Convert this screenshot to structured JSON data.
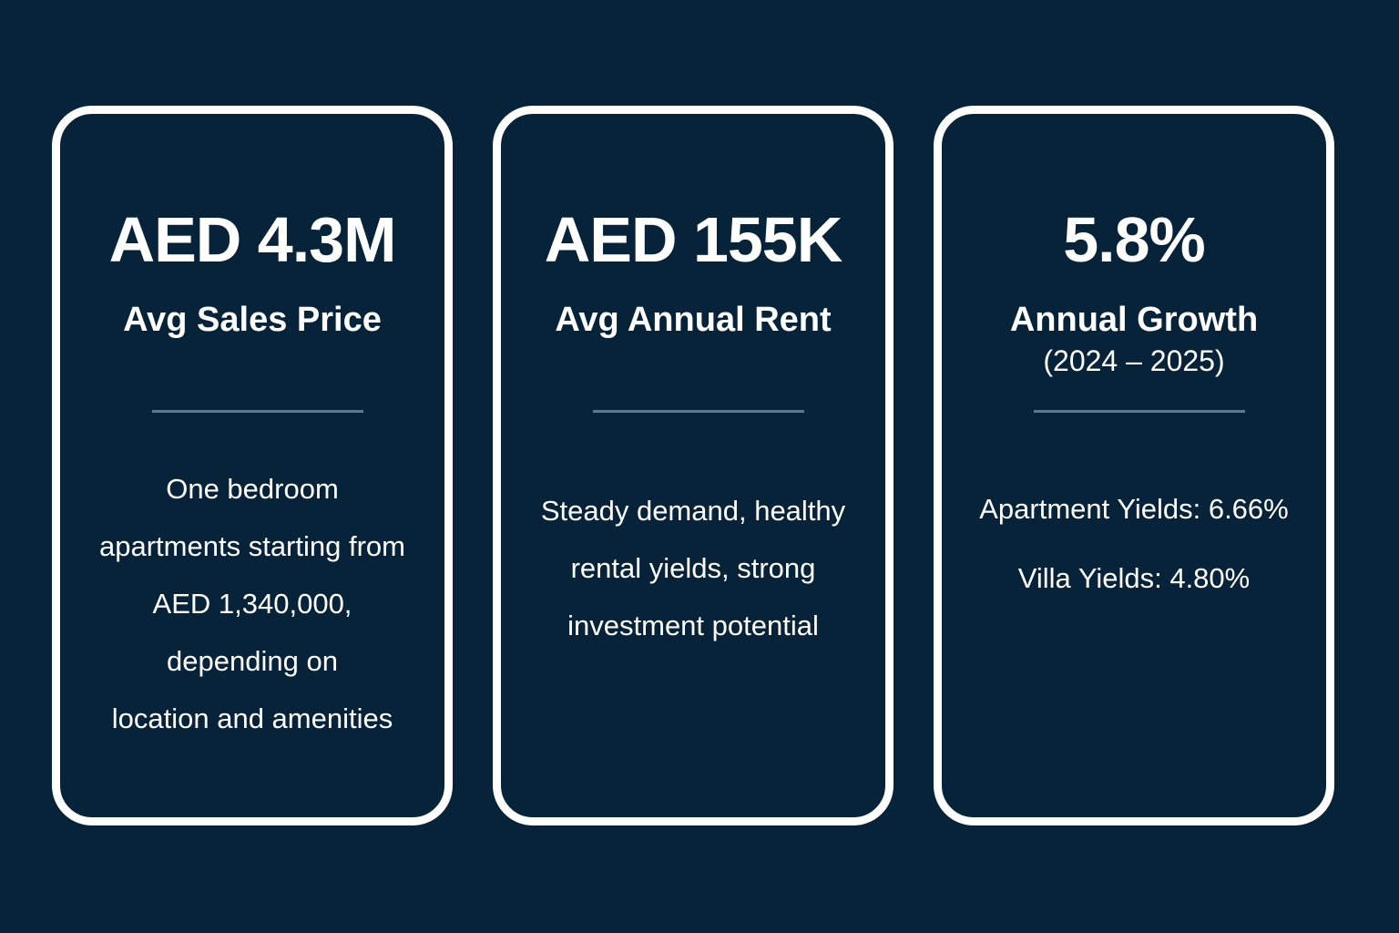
{
  "cards": [
    {
      "headline": "AED 4.3M",
      "label": "Avg Sales Price",
      "description_lines": [
        "One bedroom",
        "apartments starting from",
        "AED 1,340,000,",
        "depending on",
        "location and amenities"
      ]
    },
    {
      "headline": "AED 155K",
      "label": "Avg Annual Rent",
      "description_lines": [
        "Steady demand, healthy",
        "rental yields, strong",
        "investment potential"
      ]
    },
    {
      "headline": "5.8%",
      "label": "Annual Growth",
      "sublabel": "(2024 – 2025)",
      "yields": [
        "Apartment Yields: 6.66%",
        "Villa Yields: 4.80%"
      ]
    }
  ],
  "colors": {
    "background": "#06233a",
    "card_border": "#ffffff",
    "divider": "#5c7890",
    "text": "#ffffff"
  }
}
